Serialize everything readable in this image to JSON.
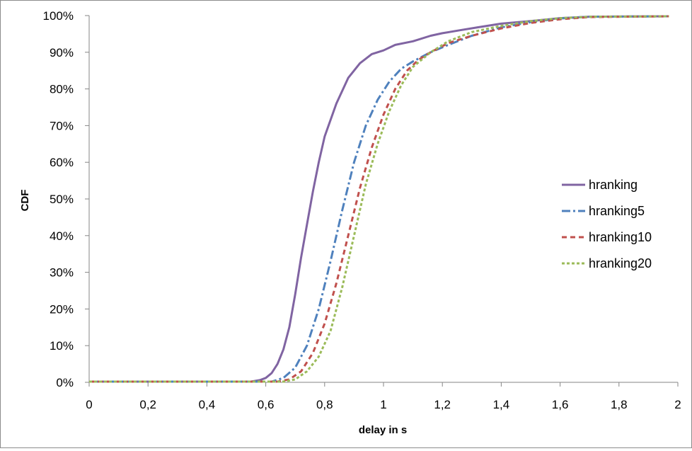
{
  "chart_data": {
    "type": "line",
    "title": "",
    "xlabel": "delay in s",
    "ylabel": "CDF",
    "xlim": [
      0,
      2
    ],
    "ylim": [
      0,
      1
    ],
    "x_ticks": [
      "0",
      "0,2",
      "0,4",
      "0,6",
      "0,8",
      "1",
      "1,2",
      "1,4",
      "1,6",
      "1,8",
      "2"
    ],
    "y_ticks": [
      "0%",
      "10%",
      "20%",
      "30%",
      "40%",
      "50%",
      "60%",
      "70%",
      "80%",
      "90%",
      "100%"
    ],
    "grid": false,
    "legend_position": "right",
    "series": [
      {
        "name": "hranking",
        "color": "#8064a2",
        "dash": "solid",
        "points": [
          [
            0,
            0.002
          ],
          [
            0.55,
            0.002
          ],
          [
            0.58,
            0.006
          ],
          [
            0.6,
            0.012
          ],
          [
            0.62,
            0.025
          ],
          [
            0.64,
            0.05
          ],
          [
            0.66,
            0.09
          ],
          [
            0.68,
            0.15
          ],
          [
            0.7,
            0.24
          ],
          [
            0.72,
            0.34
          ],
          [
            0.74,
            0.43
          ],
          [
            0.76,
            0.52
          ],
          [
            0.78,
            0.6
          ],
          [
            0.8,
            0.67
          ],
          [
            0.84,
            0.76
          ],
          [
            0.88,
            0.83
          ],
          [
            0.92,
            0.87
          ],
          [
            0.96,
            0.895
          ],
          [
            1.0,
            0.905
          ],
          [
            1.04,
            0.92
          ],
          [
            1.1,
            0.93
          ],
          [
            1.16,
            0.945
          ],
          [
            1.2,
            0.952
          ],
          [
            1.26,
            0.96
          ],
          [
            1.32,
            0.968
          ],
          [
            1.4,
            0.978
          ],
          [
            1.5,
            0.985
          ],
          [
            1.6,
            0.993
          ],
          [
            1.7,
            0.997
          ],
          [
            1.97,
            0.998
          ]
        ]
      },
      {
        "name": "hranking5",
        "color": "#4f81bd",
        "dash": "12 4 3 4",
        "points": [
          [
            0,
            0.002
          ],
          [
            0.62,
            0.002
          ],
          [
            0.66,
            0.012
          ],
          [
            0.7,
            0.04
          ],
          [
            0.74,
            0.1
          ],
          [
            0.78,
            0.2
          ],
          [
            0.82,
            0.33
          ],
          [
            0.86,
            0.47
          ],
          [
            0.9,
            0.6
          ],
          [
            0.94,
            0.7
          ],
          [
            0.98,
            0.77
          ],
          [
            1.02,
            0.82
          ],
          [
            1.06,
            0.855
          ],
          [
            1.1,
            0.875
          ],
          [
            1.16,
            0.9
          ],
          [
            1.22,
            0.92
          ],
          [
            1.3,
            0.945
          ],
          [
            1.4,
            0.968
          ],
          [
            1.5,
            0.982
          ],
          [
            1.6,
            0.992
          ],
          [
            1.7,
            0.997
          ],
          [
            1.97,
            0.998
          ]
        ]
      },
      {
        "name": "hranking10",
        "color": "#c0504d",
        "dash": "7 5",
        "points": [
          [
            0,
            0.002
          ],
          [
            0.64,
            0.002
          ],
          [
            0.68,
            0.008
          ],
          [
            0.72,
            0.03
          ],
          [
            0.76,
            0.08
          ],
          [
            0.8,
            0.16
          ],
          [
            0.84,
            0.27
          ],
          [
            0.88,
            0.4
          ],
          [
            0.92,
            0.53
          ],
          [
            0.96,
            0.64
          ],
          [
            1.0,
            0.73
          ],
          [
            1.04,
            0.8
          ],
          [
            1.08,
            0.85
          ],
          [
            1.12,
            0.88
          ],
          [
            1.16,
            0.9
          ],
          [
            1.22,
            0.925
          ],
          [
            1.3,
            0.945
          ],
          [
            1.4,
            0.965
          ],
          [
            1.5,
            0.98
          ],
          [
            1.6,
            0.99
          ],
          [
            1.7,
            0.996
          ],
          [
            1.97,
            0.998
          ]
        ]
      },
      {
        "name": "hranking20",
        "color": "#9bbb59",
        "dash": "4 3",
        "points": [
          [
            0,
            0.002
          ],
          [
            0.66,
            0.002
          ],
          [
            0.7,
            0.008
          ],
          [
            0.74,
            0.03
          ],
          [
            0.78,
            0.07
          ],
          [
            0.82,
            0.14
          ],
          [
            0.86,
            0.26
          ],
          [
            0.9,
            0.4
          ],
          [
            0.94,
            0.54
          ],
          [
            0.98,
            0.65
          ],
          [
            1.02,
            0.74
          ],
          [
            1.06,
            0.81
          ],
          [
            1.1,
            0.86
          ],
          [
            1.16,
            0.9
          ],
          [
            1.22,
            0.93
          ],
          [
            1.3,
            0.955
          ],
          [
            1.4,
            0.972
          ],
          [
            1.5,
            0.985
          ],
          [
            1.6,
            0.993
          ],
          [
            1.7,
            0.997
          ],
          [
            1.97,
            0.998
          ]
        ]
      }
    ]
  }
}
